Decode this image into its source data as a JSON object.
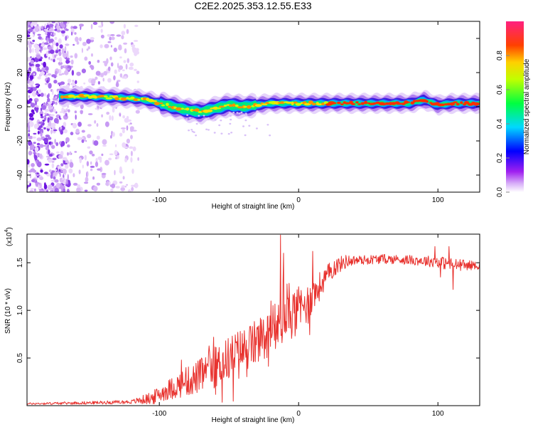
{
  "figure": {
    "title": "C2E2.2025.353.12.55.E33"
  },
  "chart_data": [
    {
      "id": "spectrogram",
      "type": "heatmap",
      "xlabel": "Height of straight line (km)",
      "ylabel": "Frequency (Hz)",
      "xlim": [
        -195,
        130
      ],
      "ylim": [
        -50,
        50
      ],
      "x_ticks": [
        -100,
        0,
        100
      ],
      "x_tick_labels": [
        "-100",
        "0",
        "100"
      ],
      "y_ticks": [
        -40,
        -20,
        0,
        20,
        40
      ],
      "y_tick_labels": [
        "-40",
        "-20",
        "0",
        "20",
        "40"
      ],
      "ridge": {
        "description_points_x": [
          -172,
          -150,
          -120,
          -110,
          -100,
          -90,
          -80,
          -70,
          -60,
          -50,
          -40,
          -30,
          -20,
          -10,
          0,
          20,
          40,
          60,
          80,
          90,
          100,
          110,
          130
        ],
        "description_points_y": [
          6,
          6,
          5,
          4,
          2,
          0,
          -2,
          -3,
          -1,
          1,
          0,
          1,
          2,
          2,
          2,
          2,
          2,
          2,
          2,
          4,
          1,
          2,
          2
        ]
      },
      "noise_x_range": [
        -195,
        -115
      ],
      "colorbar": {
        "label": "Normalized spectral amplitude",
        "range": [
          0,
          1
        ],
        "ticks": [
          0.0,
          0.2,
          0.4,
          0.6,
          0.8
        ],
        "tick_labels": [
          "0.0",
          "0.2",
          "0.4",
          "0.6",
          "0.8"
        ],
        "colors": [
          "#ffffff",
          "#a020f0",
          "#0000ff",
          "#00ffff",
          "#00ff00",
          "#ffff00",
          "#ff8000",
          "#ff0000",
          "#ff0080"
        ]
      }
    },
    {
      "id": "snr",
      "type": "line",
      "xlabel": "Height of straight line (km)",
      "ylabel": "SNR (10 * v/v)",
      "y_scale_label": "(x10",
      "y_scale_exponent": "4",
      "xlim": [
        -195,
        130
      ],
      "ylim": [
        0,
        1.8
      ],
      "x_ticks": [
        -100,
        0,
        100
      ],
      "x_tick_labels": [
        "-100",
        "0",
        "100"
      ],
      "y_ticks": [
        0.5,
        1.0,
        1.5
      ],
      "y_tick_labels": [
        "0.5",
        "1.0",
        "1.5"
      ],
      "color": "#e8322e",
      "envelope_x": [
        -195,
        -150,
        -120,
        -105,
        -95,
        -85,
        -75,
        -65,
        -55,
        -45,
        -35,
        -25,
        -15,
        -10,
        -5,
        5,
        15,
        25,
        35,
        60,
        80,
        90,
        100,
        110,
        130
      ],
      "envelope_y": [
        0.02,
        0.03,
        0.04,
        0.08,
        0.16,
        0.22,
        0.28,
        0.36,
        0.45,
        0.55,
        0.62,
        0.7,
        0.82,
        0.9,
        0.95,
        1.05,
        1.25,
        1.45,
        1.52,
        1.54,
        1.53,
        1.52,
        1.51,
        1.48,
        1.47
      ],
      "noise_amp_x": [
        -195,
        -120,
        -90,
        -60,
        -30,
        0,
        20,
        40,
        80,
        110,
        130
      ],
      "noise_amp_y": [
        0.01,
        0.02,
        0.12,
        0.22,
        0.25,
        0.25,
        0.12,
        0.05,
        0.05,
        0.07,
        0.04
      ],
      "spikes": [
        {
          "x": -13,
          "y": 1.79
        },
        {
          "x": -11,
          "y": 1.6
        },
        {
          "x": -8,
          "y": 1.12
        },
        {
          "x": 10,
          "y": 1.62
        },
        {
          "x": 98,
          "y": 1.67
        },
        {
          "x": 102,
          "y": 1.35
        },
        {
          "x": 108,
          "y": 1.67
        },
        {
          "x": 111,
          "y": 1.22
        }
      ]
    }
  ]
}
